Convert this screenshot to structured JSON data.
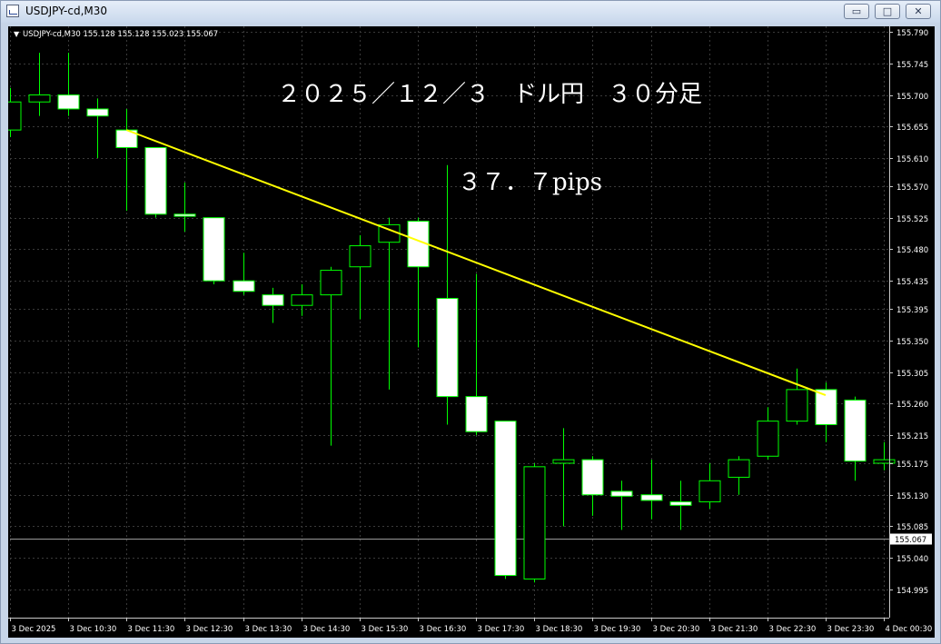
{
  "window": {
    "title": "USDJPY-cd,M30",
    "buttons": {
      "minimize": "▭",
      "maximize": "□",
      "close": "✕"
    }
  },
  "chart_info": "USDJPY-cd,M30  155.128 155.128 155.023 155.067",
  "annotations": {
    "title": "２０２５／１２／３　ドル円　３０分足",
    "pips": "３７．７pips"
  },
  "chart_data": {
    "type": "candlestick",
    "symbol": "USDJPY-cd",
    "timeframe": "M30",
    "ylim": [
      154.995,
      155.79
    ],
    "y_ticks": [
      155.79,
      155.745,
      155.7,
      155.655,
      155.61,
      155.57,
      155.525,
      155.48,
      155.435,
      155.395,
      155.35,
      155.305,
      155.26,
      155.215,
      155.175,
      155.13,
      155.085,
      155.04,
      154.995
    ],
    "x_labels": [
      "3 Dec 2025",
      "3 Dec 10:30",
      "3 Dec 11:30",
      "3 Dec 12:30",
      "3 Dec 13:30",
      "3 Dec 14:30",
      "3 Dec 15:30",
      "3 Dec 16:30",
      "3 Dec 17:30",
      "3 Dec 18:30",
      "3 Dec 19:30",
      "3 Dec 20:30",
      "3 Dec 21:30",
      "3 Dec 22:30",
      "3 Dec 23:30",
      "4 Dec 00:30"
    ],
    "current_price": 155.067,
    "candles": [
      {
        "o": 155.65,
        "h": 155.71,
        "l": 155.64,
        "c": 155.69
      },
      {
        "o": 155.69,
        "h": 155.76,
        "l": 155.67,
        "c": 155.7
      },
      {
        "o": 155.7,
        "h": 155.76,
        "l": 155.67,
        "c": 155.68
      },
      {
        "o": 155.68,
        "h": 155.695,
        "l": 155.61,
        "c": 155.67
      },
      {
        "o": 155.65,
        "h": 155.68,
        "l": 155.535,
        "c": 155.625
      },
      {
        "o": 155.625,
        "h": 155.625,
        "l": 155.525,
        "c": 155.53
      },
      {
        "o": 155.53,
        "h": 155.575,
        "l": 155.505,
        "c": 155.527
      },
      {
        "o": 155.525,
        "h": 155.525,
        "l": 155.43,
        "c": 155.435
      },
      {
        "o": 155.435,
        "h": 155.475,
        "l": 155.415,
        "c": 155.42
      },
      {
        "o": 155.415,
        "h": 155.425,
        "l": 155.375,
        "c": 155.4
      },
      {
        "o": 155.4,
        "h": 155.43,
        "l": 155.385,
        "c": 155.415
      },
      {
        "o": 155.415,
        "h": 155.455,
        "l": 155.2,
        "c": 155.45
      },
      {
        "o": 155.455,
        "h": 155.5,
        "l": 155.38,
        "c": 155.485
      },
      {
        "o": 155.49,
        "h": 155.525,
        "l": 155.28,
        "c": 155.515
      },
      {
        "o": 155.52,
        "h": 155.525,
        "l": 155.34,
        "c": 155.455
      },
      {
        "o": 155.41,
        "h": 155.6,
        "l": 155.23,
        "c": 155.27
      },
      {
        "o": 155.27,
        "h": 155.445,
        "l": 155.215,
        "c": 155.22
      },
      {
        "o": 155.235,
        "h": 155.235,
        "l": 155.01,
        "c": 155.015
      },
      {
        "o": 155.01,
        "h": 155.175,
        "l": 155.005,
        "c": 155.17
      },
      {
        "o": 155.175,
        "h": 155.225,
        "l": 155.085,
        "c": 155.18
      },
      {
        "o": 155.18,
        "h": 155.185,
        "l": 155.1,
        "c": 155.13
      },
      {
        "o": 155.135,
        "h": 155.15,
        "l": 155.08,
        "c": 155.128
      },
      {
        "o": 155.13,
        "h": 155.18,
        "l": 155.095,
        "c": 155.122
      },
      {
        "o": 155.12,
        "h": 155.15,
        "l": 155.08,
        "c": 155.115
      },
      {
        "o": 155.12,
        "h": 155.175,
        "l": 155.11,
        "c": 155.15
      },
      {
        "o": 155.155,
        "h": 155.185,
        "l": 155.13,
        "c": 155.18
      },
      {
        "o": 155.185,
        "h": 155.255,
        "l": 155.18,
        "c": 155.235
      },
      {
        "o": 155.235,
        "h": 155.31,
        "l": 155.23,
        "c": 155.28
      },
      {
        "o": 155.28,
        "h": 155.29,
        "l": 155.205,
        "c": 155.23
      },
      {
        "o": 155.265,
        "h": 155.27,
        "l": 155.15,
        "c": 155.178
      },
      {
        "o": 155.175,
        "h": 155.205,
        "l": 155.165,
        "c": 155.18
      }
    ],
    "trendline": {
      "start": {
        "candle": 4,
        "price": 155.65
      },
      "end": {
        "candle": 28,
        "price": 155.272
      },
      "color": "#ffff00"
    },
    "colors": {
      "background": "#000000",
      "bull_body": "#000000",
      "bear_body": "#ffffff",
      "wick": "#00ff00",
      "grid": "#3a3a3a",
      "text": "#ffffff"
    }
  }
}
